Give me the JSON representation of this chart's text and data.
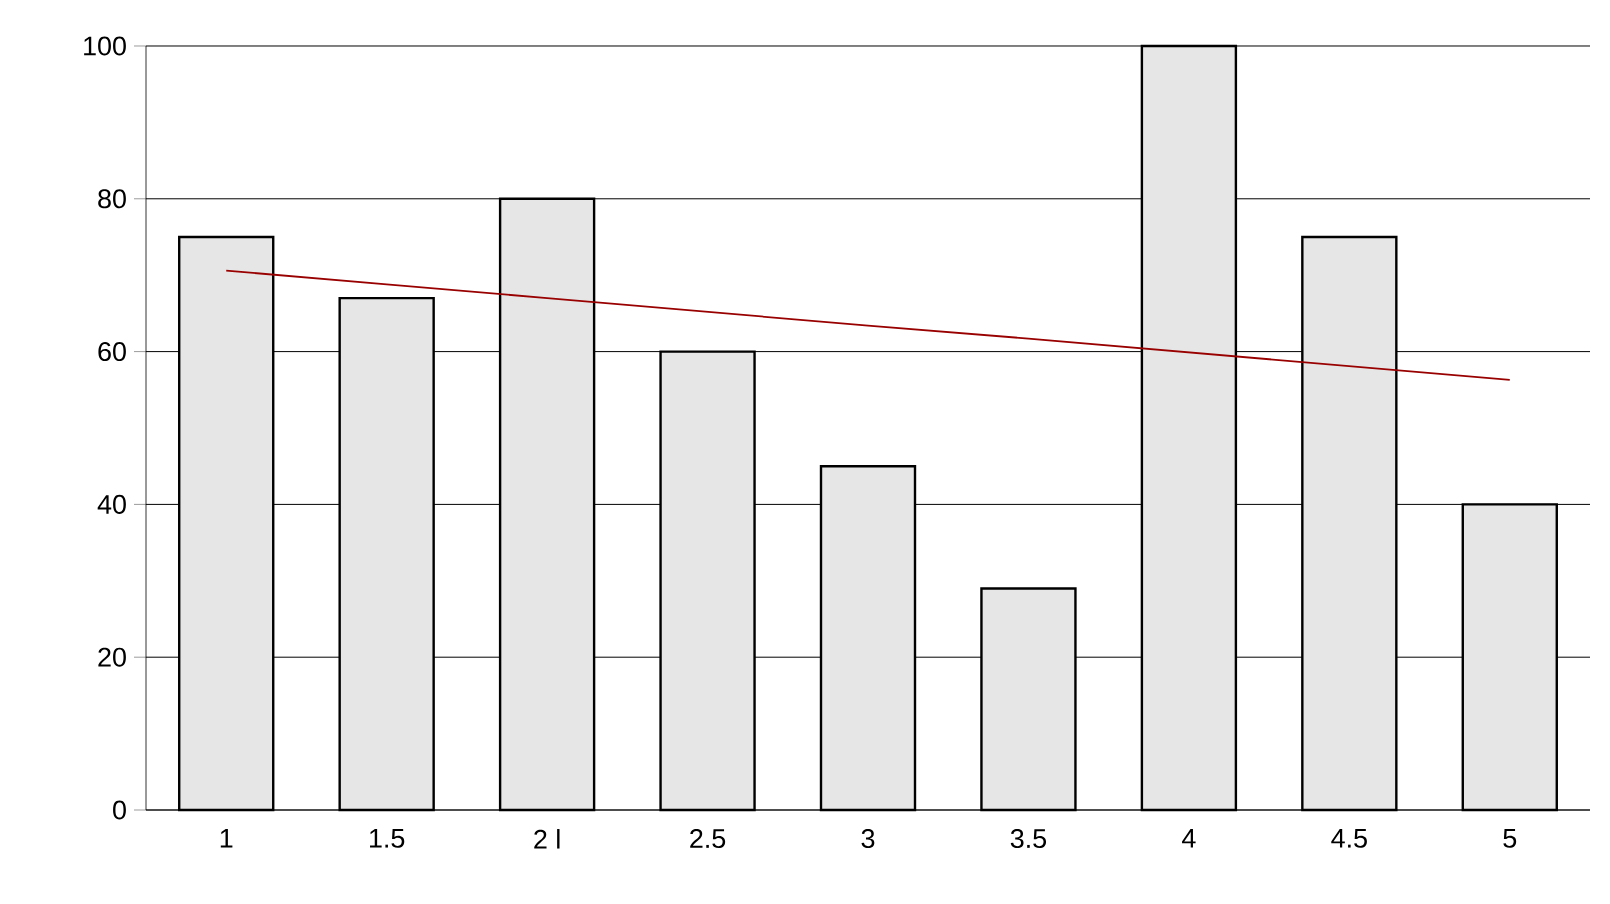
{
  "chart_data": {
    "type": "bar",
    "categories": [
      "1",
      "1.5",
      "2 l",
      "2.5",
      "3",
      "3.5",
      "4",
      "4.5",
      "5"
    ],
    "series": [
      {
        "color": "#e6e6e6",
        "values": [
          75,
          67,
          80,
          60,
          45,
          29,
          100,
          75,
          40
        ]
      },
      {
        "type": "line",
        "color": "#990000",
        "values": [
          70.6,
          68.8,
          67.0,
          65.2,
          63.4,
          61.7,
          59.9,
          58.1,
          56.3
        ]
      }
    ],
    "ylim": [
      0,
      100
    ],
    "yticks": [
      0,
      20,
      40,
      60,
      80,
      100
    ],
    "grid": "y"
  }
}
